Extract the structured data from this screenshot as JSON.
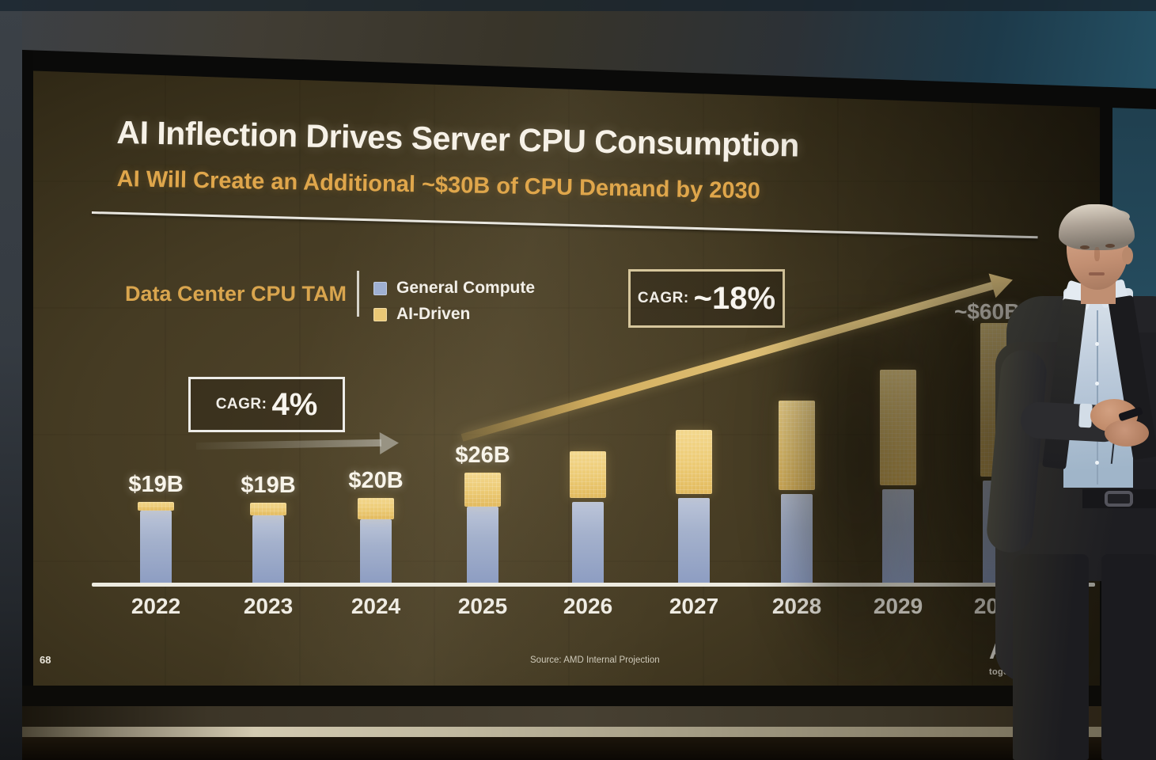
{
  "slide": {
    "page_number": "68",
    "title": "AI Inflection Drives Server CPU Consumption",
    "subtitle": "AI Will Create an Additional ~$30B of CPU Demand by 2030",
    "section_label": "Data Center CPU TAM",
    "legend": [
      {
        "label": "General Compute",
        "color": "#9fb0d2"
      },
      {
        "label": "AI-Driven",
        "color": "#eac876"
      }
    ],
    "annotations": {
      "cagr_low_prefix": "CAGR:",
      "cagr_low_value": "4%",
      "cagr_high_prefix": "CAGR:",
      "cagr_high_value": "~18%",
      "endpoint_label": "~$60B"
    },
    "source": "Source: AMD Internal Projection",
    "logo": {
      "brand": "AMD",
      "tagline": "together we advance_"
    }
  },
  "chart_data": {
    "type": "bar",
    "stacked": true,
    "title": "Data Center CPU TAM",
    "units": "$B",
    "categories": [
      "2022",
      "2023",
      "2024",
      "2025",
      "2026",
      "2027",
      "2028",
      "2029",
      "2030"
    ],
    "series": [
      {
        "name": "General Compute",
        "color": "#9fb0d2",
        "values": [
          17,
          16,
          15,
          18,
          19,
          20,
          21,
          22,
          24
        ]
      },
      {
        "name": "AI-Driven",
        "color": "#eac876",
        "values": [
          2,
          3,
          5,
          8,
          11,
          15,
          21,
          27,
          36
        ]
      }
    ],
    "totals_estimated": [
      19,
      19,
      20,
      26,
      30,
      35,
      42,
      49,
      60
    ],
    "bar_value_labels": [
      "$19B",
      "$19B",
      "$20B",
      "$26B",
      "",
      "",
      "",
      "",
      ""
    ],
    "labeled_points": {
      "2022": "$19B",
      "2023": "$19B",
      "2024": "$20B",
      "2025": "$26B",
      "2030": "~$60B"
    },
    "legend_position": "top",
    "grid": false,
    "notes": "2026-2030 values estimated from bar heights; 2030 total labeled ~$60B on slide"
  }
}
